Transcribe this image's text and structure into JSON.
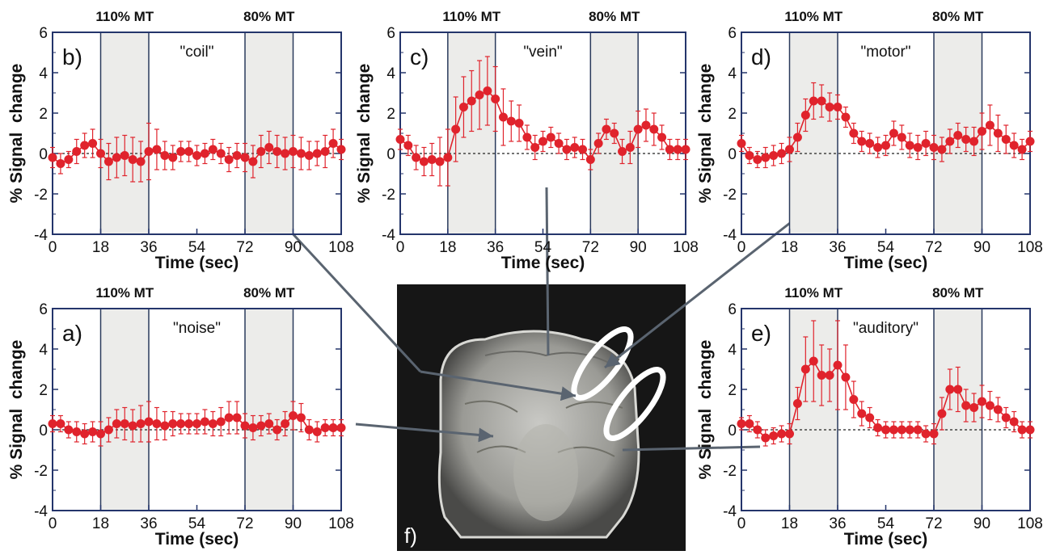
{
  "figure": {
    "panel_f_label": "f)",
    "brain_image": "coronal MRI brain slice with figure-eight TMS coil outline"
  },
  "chart_data": [
    {
      "panel": "b)",
      "name": "\"coil\"",
      "type": "scatter",
      "xlabel": "Time (sec)",
      "ylabel": "% Signal  change",
      "xlim": [
        0,
        108
      ],
      "ylim": [
        -4,
        6
      ],
      "xticks": [
        0,
        18,
        36,
        54,
        72,
        90,
        108
      ],
      "yticks": [
        -4,
        -2,
        0,
        2,
        4,
        6
      ],
      "blocks": [
        {
          "label": "110% MT",
          "x0": 18,
          "x1": 36
        },
        {
          "label": "80% MT",
          "x0": 72,
          "x1": 90
        }
      ],
      "x": [
        0,
        3,
        6,
        9,
        12,
        15,
        18,
        21,
        24,
        27,
        30,
        33,
        36,
        39,
        42,
        45,
        48,
        51,
        54,
        57,
        60,
        63,
        66,
        69,
        72,
        75,
        78,
        81,
        84,
        87,
        90,
        93,
        96,
        99,
        102,
        105,
        108
      ],
      "y": [
        -0.2,
        -0.5,
        -0.3,
        0.1,
        0.4,
        0.5,
        0.0,
        -0.4,
        -0.2,
        -0.1,
        -0.3,
        -0.4,
        0.1,
        0.2,
        -0.1,
        -0.2,
        0.1,
        0.1,
        -0.1,
        0.0,
        0.2,
        0.0,
        -0.3,
        -0.1,
        -0.2,
        -0.4,
        0.1,
        0.3,
        0.1,
        0.0,
        0.1,
        0.0,
        -0.1,
        0.0,
        0.1,
        0.5,
        0.2
      ],
      "err": [
        0.5,
        0.5,
        0.4,
        0.6,
        0.6,
        0.7,
        0.7,
        0.9,
        1.0,
        1.0,
        1.1,
        1.0,
        1.4,
        1.0,
        0.7,
        0.6,
        0.5,
        0.5,
        0.5,
        0.5,
        0.5,
        0.5,
        0.6,
        0.6,
        0.7,
        0.8,
        0.8,
        0.8,
        0.8,
        0.8,
        0.8,
        0.8,
        0.7,
        0.6,
        0.8,
        0.7,
        0.5
      ]
    },
    {
      "panel": "c)",
      "name": "\"vein\"",
      "type": "scatter",
      "xlabel": "Time (sec)",
      "ylabel": "% Signal  change",
      "xlim": [
        0,
        108
      ],
      "ylim": [
        -4,
        6
      ],
      "xticks": [
        0,
        18,
        36,
        54,
        72,
        90,
        108
      ],
      "yticks": [
        -4,
        -2,
        0,
        2,
        4,
        6
      ],
      "blocks": [
        {
          "label": "110% MT",
          "x0": 18,
          "x1": 36
        },
        {
          "label": "80% MT",
          "x0": 72,
          "x1": 90
        }
      ],
      "x": [
        0,
        3,
        6,
        9,
        12,
        15,
        18,
        21,
        24,
        27,
        30,
        33,
        36,
        39,
        42,
        45,
        48,
        51,
        54,
        57,
        60,
        63,
        66,
        69,
        72,
        75,
        78,
        81,
        84,
        87,
        90,
        93,
        96,
        99,
        102,
        105,
        108
      ],
      "y": [
        0.7,
        0.4,
        -0.2,
        -0.4,
        -0.3,
        -0.4,
        -0.2,
        1.2,
        2.3,
        2.6,
        2.9,
        3.1,
        2.7,
        1.8,
        1.6,
        1.5,
        0.8,
        0.3,
        0.6,
        0.8,
        0.5,
        0.2,
        0.3,
        0.2,
        -0.3,
        0.5,
        1.2,
        1.0,
        0.1,
        0.3,
        1.2,
        1.4,
        1.2,
        0.8,
        0.2,
        0.2,
        0.2
      ],
      "err": [
        0.5,
        0.5,
        0.6,
        0.7,
        0.8,
        1.2,
        1.4,
        1.6,
        1.5,
        1.5,
        1.7,
        1.7,
        1.6,
        1.4,
        1.0,
        0.9,
        0.6,
        0.6,
        0.5,
        0.5,
        0.5,
        0.5,
        0.5,
        0.5,
        0.5,
        0.5,
        0.5,
        0.5,
        0.6,
        0.8,
        0.9,
        0.8,
        0.8,
        0.6,
        0.5,
        0.5,
        0.5
      ]
    },
    {
      "panel": "d)",
      "name": "\"motor\"",
      "type": "scatter",
      "xlabel": "Time (sec)",
      "ylabel": "% Signal  change",
      "xlim": [
        0,
        108
      ],
      "ylim": [
        -4,
        6
      ],
      "xticks": [
        0,
        18,
        36,
        54,
        72,
        90,
        108
      ],
      "yticks": [
        -4,
        -2,
        0,
        2,
        4,
        6
      ],
      "blocks": [
        {
          "label": "110% MT",
          "x0": 18,
          "x1": 36
        },
        {
          "label": "80% MT",
          "x0": 72,
          "x1": 90
        }
      ],
      "x": [
        0,
        3,
        6,
        9,
        12,
        15,
        18,
        21,
        24,
        27,
        30,
        33,
        36,
        39,
        42,
        45,
        48,
        51,
        54,
        57,
        60,
        63,
        66,
        69,
        72,
        75,
        78,
        81,
        84,
        87,
        90,
        93,
        96,
        99,
        102,
        105,
        108
      ],
      "y": [
        0.5,
        -0.1,
        -0.3,
        -0.2,
        -0.1,
        0.0,
        0.2,
        0.8,
        1.9,
        2.6,
        2.6,
        2.3,
        2.3,
        1.8,
        1.0,
        0.6,
        0.5,
        0.3,
        0.4,
        1.0,
        0.8,
        0.4,
        0.3,
        0.5,
        0.3,
        0.2,
        0.6,
        0.9,
        0.7,
        0.6,
        1.1,
        1.4,
        1.0,
        0.7,
        0.4,
        0.2,
        0.6
      ],
      "err": [
        0.4,
        0.4,
        0.4,
        0.5,
        0.5,
        0.5,
        0.6,
        0.7,
        0.8,
        0.9,
        0.8,
        0.7,
        0.6,
        0.5,
        0.5,
        0.5,
        0.5,
        0.5,
        0.5,
        0.6,
        0.6,
        0.6,
        0.6,
        0.6,
        0.6,
        0.6,
        0.6,
        0.6,
        0.6,
        0.7,
        0.9,
        1.0,
        0.9,
        0.7,
        0.6,
        0.5,
        0.5
      ]
    },
    {
      "panel": "a)",
      "name": "\"noise\"",
      "type": "scatter",
      "xlabel": "Time (sec)",
      "ylabel": "% Signal  change",
      "xlim": [
        0,
        108
      ],
      "ylim": [
        -4,
        6
      ],
      "xticks": [
        0,
        18,
        36,
        54,
        72,
        90,
        108
      ],
      "yticks": [
        -4,
        -2,
        0,
        2,
        4,
        6
      ],
      "blocks": [
        {
          "label": "110% MT",
          "x0": 18,
          "x1": 36
        },
        {
          "label": "80% MT",
          "x0": 72,
          "x1": 90
        }
      ],
      "x": [
        0,
        3,
        6,
        9,
        12,
        15,
        18,
        21,
        24,
        27,
        30,
        33,
        36,
        39,
        42,
        45,
        48,
        51,
        54,
        57,
        60,
        63,
        66,
        69,
        72,
        75,
        78,
        81,
        84,
        87,
        90,
        93,
        96,
        99,
        102,
        105,
        108
      ],
      "y": [
        0.3,
        0.3,
        0.0,
        -0.1,
        -0.2,
        -0.1,
        -0.2,
        0.0,
        0.3,
        0.3,
        0.2,
        0.3,
        0.4,
        0.3,
        0.2,
        0.3,
        0.3,
        0.3,
        0.3,
        0.4,
        0.3,
        0.4,
        0.6,
        0.6,
        0.2,
        0.1,
        0.2,
        0.3,
        0.0,
        0.3,
        0.7,
        0.6,
        0.0,
        -0.1,
        0.1,
        0.1,
        0.1
      ],
      "err": [
        0.4,
        0.4,
        0.4,
        0.5,
        0.5,
        0.5,
        0.6,
        0.6,
        0.7,
        0.8,
        0.8,
        0.9,
        1.0,
        0.8,
        0.7,
        0.6,
        0.5,
        0.5,
        0.5,
        0.6,
        0.6,
        0.7,
        0.8,
        0.8,
        0.6,
        0.6,
        0.5,
        0.5,
        0.5,
        0.6,
        0.7,
        0.7,
        0.5,
        0.5,
        0.4,
        0.4,
        0.4
      ]
    },
    {
      "panel": "e)",
      "name": "\"auditory\"",
      "type": "scatter",
      "xlabel": "Time (sec)",
      "ylabel": "% Signal  change",
      "xlim": [
        0,
        108
      ],
      "ylim": [
        -4,
        6
      ],
      "xticks": [
        0,
        18,
        36,
        54,
        72,
        90,
        108
      ],
      "yticks": [
        -4,
        -2,
        0,
        2,
        4,
        6
      ],
      "blocks": [
        {
          "label": "110% MT",
          "x0": 18,
          "x1": 36
        },
        {
          "label": "80% MT",
          "x0": 72,
          "x1": 90
        }
      ],
      "x": [
        0,
        3,
        6,
        9,
        12,
        15,
        18,
        21,
        24,
        27,
        30,
        33,
        36,
        39,
        42,
        45,
        48,
        51,
        54,
        57,
        60,
        63,
        66,
        69,
        72,
        75,
        78,
        81,
        84,
        87,
        90,
        93,
        96,
        99,
        102,
        105,
        108
      ],
      "y": [
        0.3,
        0.3,
        0.0,
        -0.4,
        -0.3,
        -0.2,
        -0.2,
        1.3,
        3.0,
        3.4,
        2.7,
        2.7,
        3.2,
        2.6,
        1.5,
        0.8,
        0.6,
        0.1,
        0.0,
        0.0,
        0.0,
        0.0,
        0.0,
        -0.2,
        -0.2,
        0.8,
        2.0,
        2.0,
        1.2,
        1.1,
        1.4,
        1.2,
        1.0,
        0.6,
        0.4,
        0.0,
        0.0
      ],
      "err": [
        0.3,
        0.4,
        0.4,
        0.4,
        0.4,
        0.4,
        0.5,
        0.8,
        1.6,
        2.0,
        1.5,
        1.3,
        2.2,
        1.6,
        0.9,
        0.6,
        0.5,
        0.4,
        0.4,
        0.4,
        0.4,
        0.4,
        0.4,
        0.4,
        0.5,
        0.8,
        1.0,
        1.1,
        0.8,
        0.7,
        0.8,
        0.7,
        0.6,
        0.5,
        0.5,
        0.4,
        0.4
      ]
    }
  ]
}
